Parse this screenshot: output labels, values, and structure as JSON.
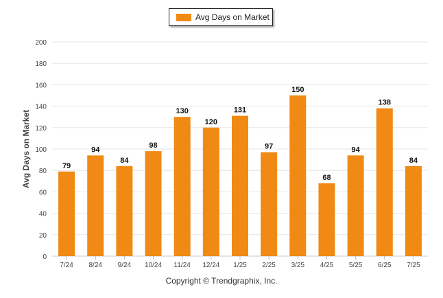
{
  "legend": {
    "label": "Avg Days on Market"
  },
  "credit": "Copyright © Trendgraphix, Inc.",
  "chart_data": {
    "type": "bar",
    "title": "",
    "xlabel": "",
    "ylabel": "Avg Days on Market",
    "ylim": [
      0,
      200
    ],
    "yticks": [
      0,
      20,
      40,
      60,
      80,
      100,
      120,
      140,
      160,
      180,
      200
    ],
    "categories": [
      "7/24",
      "8/24",
      "9/24",
      "10/24",
      "11/24",
      "12/24",
      "1/25",
      "2/25",
      "3/25",
      "4/25",
      "5/25",
      "6/25",
      "7/25"
    ],
    "series": [
      {
        "name": "Avg Days on Market",
        "values": [
          79,
          94,
          84,
          98,
          130,
          120,
          131,
          97,
          150,
          68,
          94,
          138,
          84
        ]
      }
    ],
    "bar_color": "#f08a14",
    "grid": true,
    "legend_position": "top-center",
    "data_labels": true
  }
}
